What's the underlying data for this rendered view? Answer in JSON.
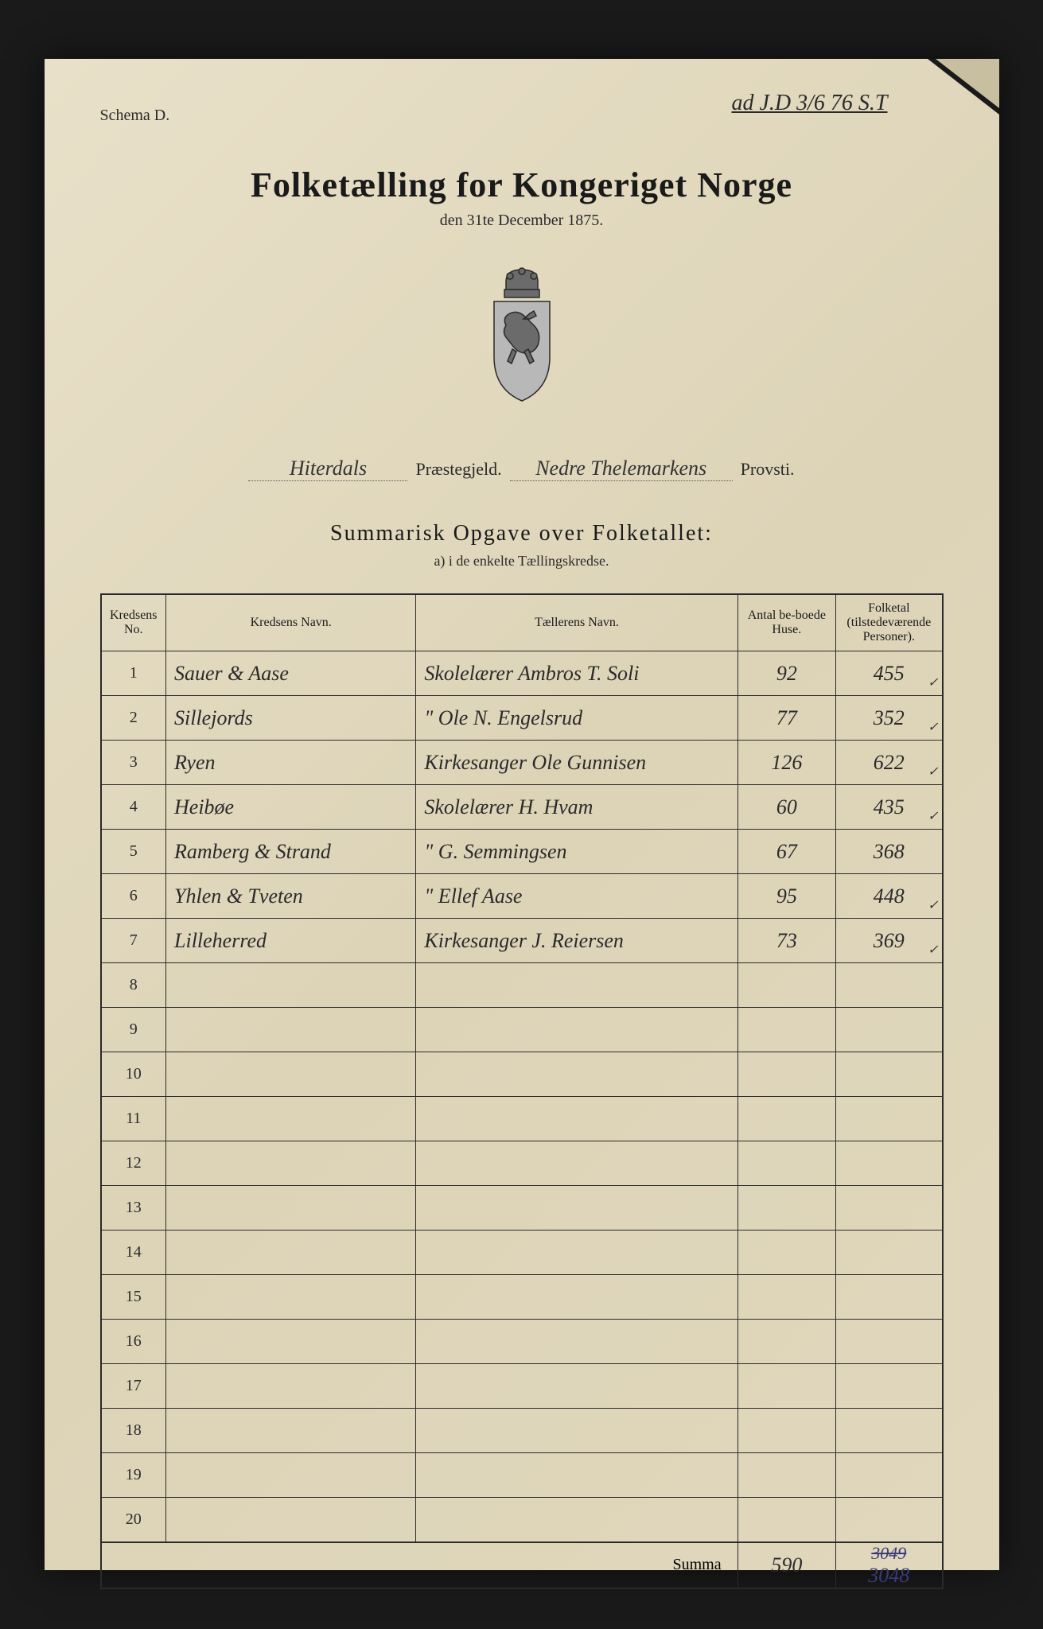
{
  "handwritten_annotation": "ad J.D 3/6 76 S.T",
  "schema_label": "Schema D.",
  "title": "Folketælling for Kongeriget Norge",
  "subtitle": "den 31te December 1875.",
  "location": {
    "praestegjeld_value": "Hiterdals",
    "praestegjeld_label": "Præstegjeld.",
    "provsti_value": "Nedre Thelemarkens",
    "provsti_label": "Provsti."
  },
  "section_title": "Summarisk Opgave over Folketallet:",
  "section_sub": "a) i de enkelte Tællingskredse.",
  "columns": {
    "no": "Kredsens No.",
    "navn": "Kredsens Navn.",
    "taeller": "Tællerens Navn.",
    "huse": "Antal be-boede Huse.",
    "folketal": "Folketal (tilstedeværende Personer)."
  },
  "rows": [
    {
      "no": "1",
      "navn": "Sauer & Aase",
      "taeller": "Skolelærer Ambros T. Soli",
      "huse": "92",
      "folketal": "455",
      "check": true
    },
    {
      "no": "2",
      "navn": "Sillejords",
      "taeller": "\"   Ole N. Engelsrud",
      "huse": "77",
      "folketal": "352",
      "check": true
    },
    {
      "no": "3",
      "navn": "Ryen",
      "taeller": "Kirkesanger Ole Gunnisen",
      "huse": "126",
      "folketal": "622",
      "check": true
    },
    {
      "no": "4",
      "navn": "Heibøe",
      "taeller": "Skolelærer H. Hvam",
      "huse": "60",
      "folketal": "435",
      "check": true
    },
    {
      "no": "5",
      "navn": "Ramberg & Strand",
      "taeller": "\"   G. Semmingsen",
      "huse": "67",
      "folketal": "368",
      "check": false
    },
    {
      "no": "6",
      "navn": "Yhlen & Tveten",
      "taeller": "\"   Ellef Aase",
      "huse": "95",
      "folketal": "448",
      "check": true
    },
    {
      "no": "7",
      "navn": "Lilleherred",
      "taeller": "Kirkesanger J. Reiersen",
      "huse": "73",
      "folketal": "369",
      "check": true
    }
  ],
  "empty_rows": [
    "8",
    "9",
    "10",
    "11",
    "12",
    "13",
    "14",
    "15",
    "16",
    "17",
    "18",
    "19",
    "20"
  ],
  "summa": {
    "label": "Summa",
    "huse": "590",
    "folketal_struck": "3049",
    "folketal_corrected": "3048"
  },
  "crest_colors": {
    "crown": "#6b6b6b",
    "shield": "#8a8a8a",
    "outline": "#2a2a2a"
  }
}
